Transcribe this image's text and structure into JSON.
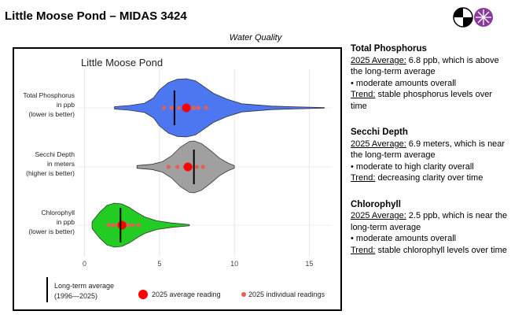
{
  "header": {
    "title": "Little Moose Pond – MIDAS 3424",
    "subtitle": "Water Quality"
  },
  "logo": {
    "icons": [
      "quartered-circle-logo",
      "purple-asterisk-circle-logo"
    ]
  },
  "chart_data": {
    "type": "violin",
    "title": "Little Moose Pond",
    "xlabel": "",
    "ylabel": "",
    "xlim": [
      -0.5,
      16.5
    ],
    "xticks": [
      0,
      5,
      10,
      15
    ],
    "grid": true,
    "categories": [
      {
        "lines": [
          "Total Phosphorus",
          "in ppb",
          "(lower is better)"
        ],
        "fill": "#4d77f0",
        "long_term_average": 6.0,
        "average_2025": 6.8,
        "readings_2025": [
          5.3,
          5.8,
          6.3,
          6.7,
          7.0,
          7.3,
          7.6,
          8.1
        ],
        "density": [
          [
            2.0,
            0.04
          ],
          [
            3.0,
            0.08
          ],
          [
            4.0,
            0.16
          ],
          [
            4.6,
            0.34
          ],
          [
            5.0,
            0.62
          ],
          [
            5.6,
            0.87
          ],
          [
            6.2,
            0.98
          ],
          [
            6.8,
            1.0
          ],
          [
            7.4,
            0.93
          ],
          [
            8.0,
            0.72
          ],
          [
            8.6,
            0.5
          ],
          [
            9.5,
            0.3
          ],
          [
            10.5,
            0.14
          ],
          [
            12.5,
            0.06
          ],
          [
            14.5,
            0.03
          ],
          [
            16.0,
            0.01
          ]
        ]
      },
      {
        "lines": [
          "Secchi Depth",
          "in meters",
          "(higher is better)"
        ],
        "fill": "#a0a0a0",
        "long_term_average": 7.3,
        "average_2025": 6.9,
        "readings_2025": [
          5.6,
          6.2,
          6.7,
          7.1,
          7.5,
          7.9
        ],
        "density": [
          [
            3.5,
            0.05
          ],
          [
            4.5,
            0.1
          ],
          [
            5.2,
            0.2
          ],
          [
            5.8,
            0.42
          ],
          [
            6.4,
            0.76
          ],
          [
            7.0,
            0.98
          ],
          [
            7.3,
            1.0
          ],
          [
            7.8,
            0.9
          ],
          [
            8.4,
            0.64
          ],
          [
            9.0,
            0.34
          ],
          [
            9.6,
            0.14
          ],
          [
            10.0,
            0.05
          ]
        ]
      },
      {
        "lines": [
          "Chlorophyll",
          "in ppb",
          "(lower is better)"
        ],
        "fill": "#22cc22",
        "long_term_average": 2.4,
        "average_2025": 2.5,
        "readings_2025": [
          1.6,
          1.9,
          2.2,
          2.4,
          2.7,
          2.9,
          3.2,
          3.6
        ],
        "density": [
          [
            0.5,
            0.15
          ],
          [
            1.0,
            0.58
          ],
          [
            1.5,
            0.9
          ],
          [
            2.0,
            1.0
          ],
          [
            2.5,
            0.96
          ],
          [
            3.0,
            0.8
          ],
          [
            3.5,
            0.58
          ],
          [
            4.0,
            0.38
          ],
          [
            4.8,
            0.2
          ],
          [
            5.8,
            0.1
          ],
          [
            7.0,
            0.03
          ]
        ]
      }
    ],
    "legend": {
      "placement": "bottom",
      "long_term_lines": [
        "Long-term average",
        "(1996—2025)"
      ],
      "avg_label": "2025 average reading",
      "individual_label": "2025 individual readings"
    },
    "colors": {
      "average": "#ff0000",
      "individual": "#e46050",
      "line": "#000000"
    }
  },
  "summaries": [
    {
      "title": "Total Phosphorus",
      "avg_label": "2025 Average:",
      "avg_text": " 6.8 ppb, which is above the long-term average",
      "bullet": "• moderate amounts overall",
      "trend_label": "Trend:",
      "trend_text": " stable phosphorus levels over time"
    },
    {
      "title": "Secchi Depth",
      "avg_label": "2025 Average:",
      "avg_text": " 6.9 meters, which is near the long-term average",
      "bullet": "• moderate to high clarity overall",
      "trend_label": "Trend:",
      "trend_text": " decreasing clarity over time"
    },
    {
      "title": "Chlorophyll",
      "avg_label": "2025 Average:",
      "avg_text": " 2.5 ppb, which is near the long-term average",
      "bullet": "• moderate amounts overall",
      "trend_label": "Trend:",
      "trend_text": " stable chlorophyll levels over time"
    }
  ]
}
